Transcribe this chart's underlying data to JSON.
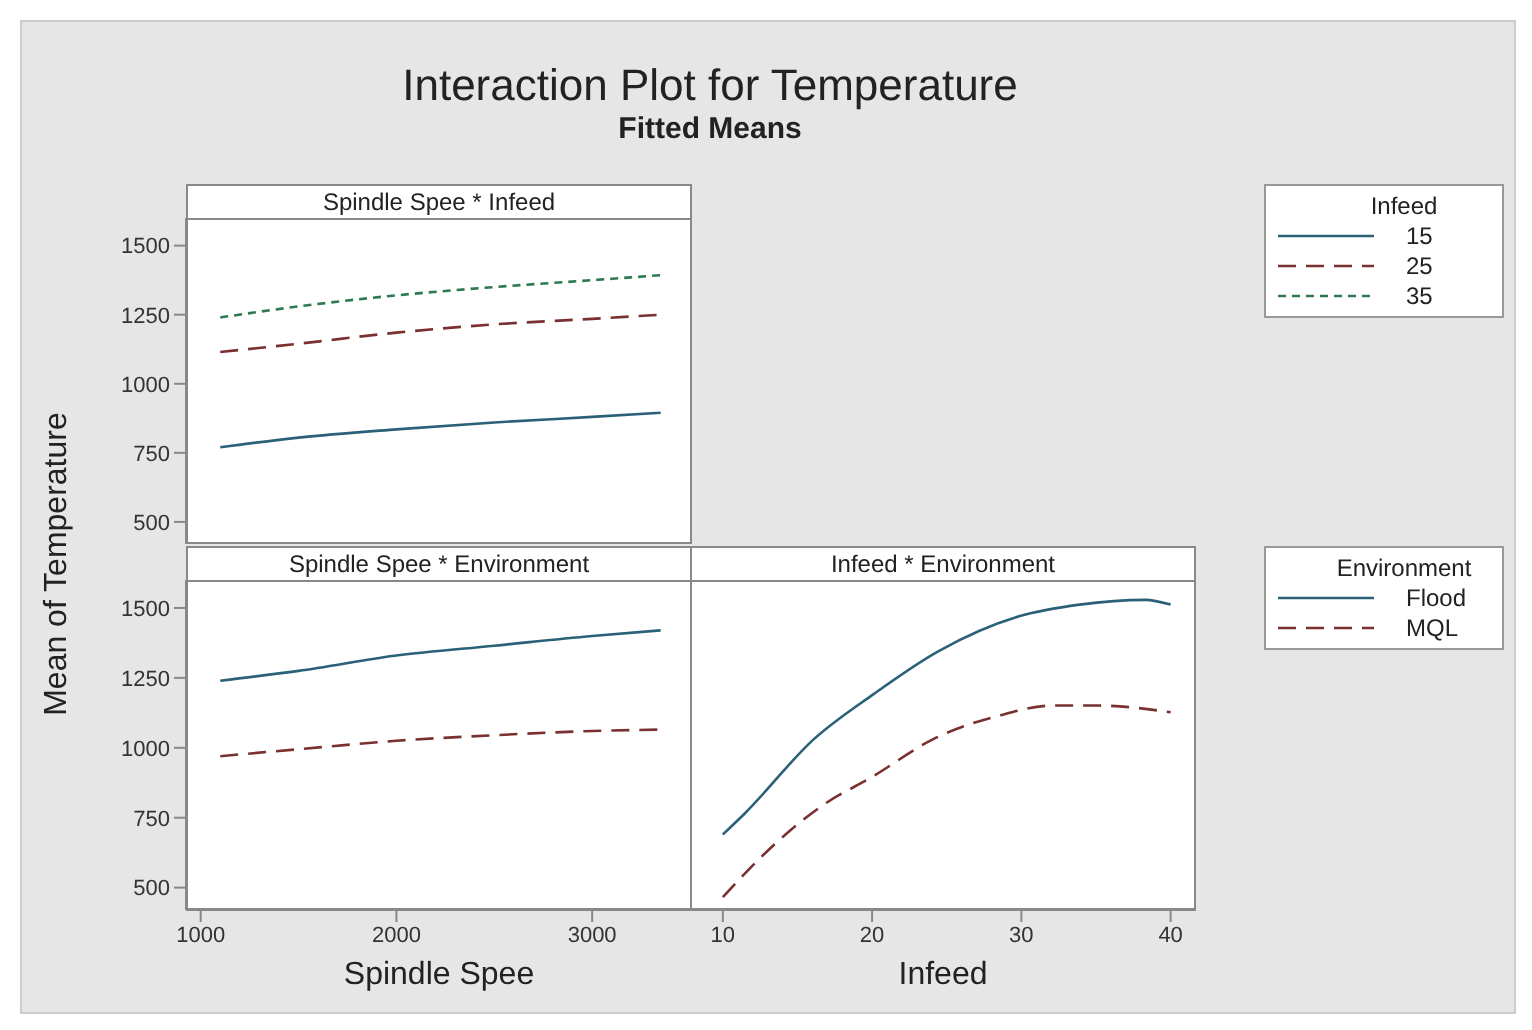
{
  "chart_data": [
    {
      "type": "line",
      "title": "Spindle Spee * Infeed",
      "annotations": [
        "Interaction Plot for Temperature",
        "Fitted Means"
      ],
      "ylabel": "Mean of Temperature",
      "legend_title": "Infeed",
      "legend": "right",
      "tick_labels": "y",
      "x": [
        1100,
        1500,
        2000,
        2500,
        3000,
        3350
      ],
      "xlim": [
        925,
        3510
      ],
      "ylim": [
        420,
        1600
      ],
      "yticks": [
        500,
        750,
        1000,
        1250,
        1500
      ],
      "series": [
        {
          "name": "15",
          "color": "#2b6178",
          "line_style": "solid",
          "values": [
            770,
            805,
            835,
            860,
            880,
            895
          ]
        },
        {
          "name": "25",
          "color": "#7a3030",
          "line_style": "dashed",
          "values": [
            1115,
            1145,
            1185,
            1215,
            1235,
            1250
          ]
        },
        {
          "name": "35",
          "color": "#2e7a50",
          "line_style": "dotted",
          "values": [
            1240,
            1280,
            1320,
            1350,
            1375,
            1393
          ]
        }
      ]
    },
    {
      "type": "line",
      "title": "Spindle Spee * Environment",
      "xlabel": "Spindle Spee",
      "x": [
        1100,
        1500,
        2000,
        2500,
        3000,
        3350
      ],
      "xlim": [
        925,
        3510
      ],
      "xticks": [
        1000,
        2000,
        3000
      ],
      "ylim": [
        420,
        1600
      ],
      "yticks": [
        500,
        750,
        1000,
        1250,
        1500
      ],
      "series": [
        {
          "color": "#2b6178",
          "line_style": "solid",
          "values": [
            1240,
            1275,
            1330,
            1365,
            1400,
            1420
          ]
        },
        {
          "color": "#7a3030",
          "line_style": "dashed",
          "values": [
            970,
            995,
            1025,
            1045,
            1060,
            1065
          ]
        }
      ]
    },
    {
      "type": "line",
      "title": "Infeed * Environment",
      "xlabel": "Infeed",
      "legend_title": "Environment",
      "legend": "right",
      "tick_labels": "x",
      "xlim": [
        7.8,
        41.7
      ],
      "xticks": [
        10,
        20,
        30,
        40
      ],
      "ylim": [
        420,
        1600
      ],
      "yticks": [
        500,
        750,
        1000,
        1250,
        1500
      ],
      "series": [
        {
          "name": "Flood",
          "color": "#2b6178",
          "line_style": "solid",
          "x": [
            10,
            11.5,
            16.1,
            20.1,
            24.4,
            29.9,
            33.9,
            38.3,
            40
          ],
          "values": [
            690,
            767,
            1031,
            1192,
            1344,
            1471,
            1512,
            1529,
            1512
          ]
        },
        {
          "name": "MQL",
          "color": "#7a3030",
          "line_style": "dashed",
          "x": [
            10,
            12.6,
            16.6,
            20.1,
            24.1,
            28.5,
            32.1,
            35.2,
            40
          ],
          "values": [
            466,
            611,
            791,
            899,
            1031,
            1115,
            1151,
            1151,
            1127
          ]
        }
      ]
    }
  ]
}
